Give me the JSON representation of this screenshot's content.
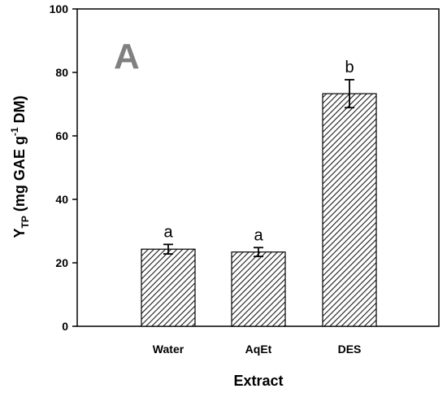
{
  "chart_data": {
    "type": "bar",
    "panel_label": "A",
    "categories": [
      "Water",
      "AqEt",
      "DES"
    ],
    "values": [
      24.3,
      23.4,
      73.3
    ],
    "errors": [
      1.5,
      1.4,
      4.4
    ],
    "significance": [
      "a",
      "a",
      "b"
    ],
    "xlabel": "Extract",
    "ylabel": {
      "main": "Y",
      "sub": "TP",
      "pre": " (mg GAE g",
      "sup": "-1",
      "post": " DM)"
    },
    "ylim": [
      0,
      100
    ],
    "yticks": [
      0,
      20,
      40,
      60,
      80,
      100
    ],
    "bar_fill": "hatched",
    "colors": {
      "bar_edge": "#000000",
      "hatch": "#000000",
      "panel_letter": "#808080"
    },
    "grid": false,
    "legend": "none"
  }
}
